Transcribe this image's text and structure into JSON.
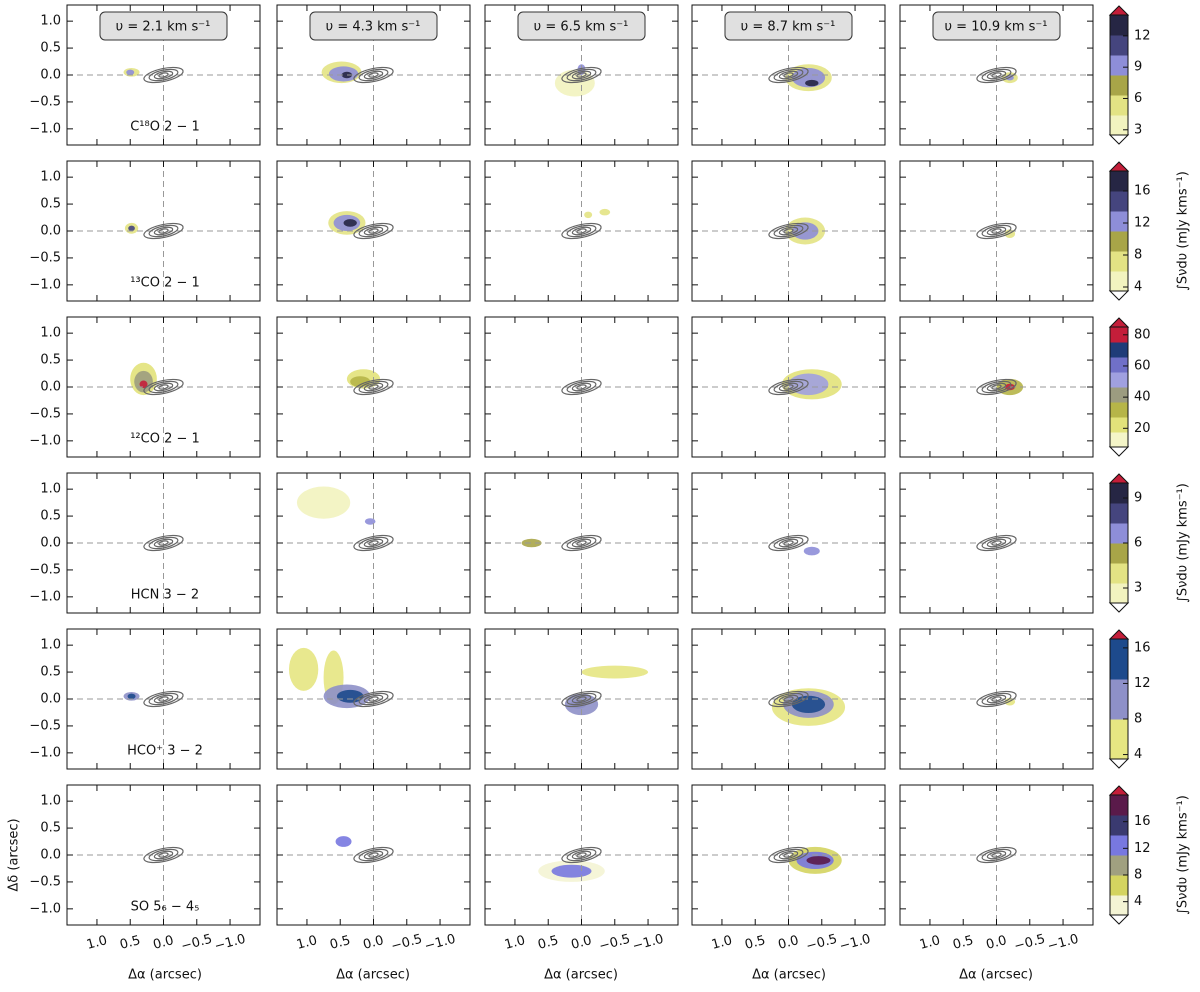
{
  "chart_data": {
    "type": "channel-map",
    "x_label": "Δα (arcsec)",
    "y_label": "Δδ (arcsec)",
    "xlim": [
      1.45,
      -1.45
    ],
    "ylim": [
      -1.3,
      1.3
    ],
    "xticks": [
      {
        "value": 1.0,
        "label": "1.0"
      },
      {
        "value": 0.5,
        "label": "0.5"
      },
      {
        "value": 0,
        "label": "0.0"
      },
      {
        "value": -0.5,
        "label": "−0.5"
      },
      {
        "value": -1.0,
        "label": "−1.0"
      }
    ],
    "yticks": [
      {
        "value": 1.0,
        "label": "1.0"
      },
      {
        "value": 0.5,
        "label": "0.5"
      },
      {
        "value": 0,
        "label": "0.0"
      },
      {
        "value": -0.5,
        "label": "−0.5"
      },
      {
        "value": -1.0,
        "label": "−1.0"
      }
    ],
    "zero_lines": true,
    "velocities": [
      "υ = 2.1 km s⁻¹",
      "υ = 4.3 km s⁻¹",
      "υ = 6.5 km s⁻¹",
      "υ = 8.7 km s⁻¹",
      "υ = 10.9 km s⁻¹"
    ],
    "rows": [
      {
        "line": "C¹⁸O 2 − 1",
        "colorbar": {
          "lim": [
            2.5,
            14
          ],
          "ticks": [
            3,
            6,
            9,
            12
          ],
          "colors": [
            "#f2f3bf",
            "#e3e384",
            "#a8a548",
            "#8e8ed8",
            "#45457e",
            "#262644"
          ],
          "under": "#ffffff",
          "over": "#c41e3a"
        }
      },
      {
        "line": "¹³CO 2 − 1",
        "label": "∫Sνdυ (mJy kms⁻¹)",
        "colorbar": {
          "lim": [
            3.5,
            18.5
          ],
          "ticks": [
            4,
            8,
            12,
            16
          ],
          "colors": [
            "#f2f3bf",
            "#e3e384",
            "#a8a548",
            "#8e8ed8",
            "#45457e",
            "#262644"
          ],
          "under": "#ffffff",
          "over": "#c41e3a"
        }
      },
      {
        "line": "¹²CO 2 − 1",
        "colorbar": {
          "lim": [
            8,
            85
          ],
          "ticks": [
            20,
            40,
            60,
            80
          ],
          "colors": [
            "#f4f5c8",
            "#e2e27a",
            "#b6b548",
            "#9c9c80",
            "#a0a0e0",
            "#7070c8",
            "#1f3c78",
            "#c41e3a"
          ],
          "under": "#ffffff",
          "over": "#c41e3a"
        }
      },
      {
        "line": "HCN 3 − 2",
        "label": "∫Sνdυ (mJy kms⁻¹)",
        "colorbar": {
          "lim": [
            2,
            10
          ],
          "ticks": [
            3,
            6,
            9
          ],
          "colors": [
            "#f2f3bf",
            "#e3e384",
            "#a8a548",
            "#8e8ed8",
            "#45457e",
            "#262644"
          ],
          "under": "#ffffff",
          "over": "#c41e3a"
        }
      },
      {
        "line": "HCO⁺ 3 − 2",
        "colorbar": {
          "lim": [
            3.5,
            17
          ],
          "ticks": [
            4,
            8,
            12,
            16
          ],
          "colors": [
            "#e6e682",
            "#8e90c8",
            "#1d4a8c"
          ],
          "under": "#ffffff",
          "over": "#c41e3a"
        }
      },
      {
        "line": "SO 5₆ − 4₅",
        "label": "∫Sνdυ (mJy kms⁻¹)",
        "colorbar": {
          "lim": [
            2,
            20
          ],
          "ticks": [
            4,
            8,
            12,
            16
          ],
          "colors": [
            "#f4f4d4",
            "#d4d460",
            "#a0a080",
            "#7878e0",
            "#3a3a70",
            "#5a1a4a"
          ],
          "under": "#ffffff",
          "over": "#c41e3a"
        }
      }
    ]
  }
}
